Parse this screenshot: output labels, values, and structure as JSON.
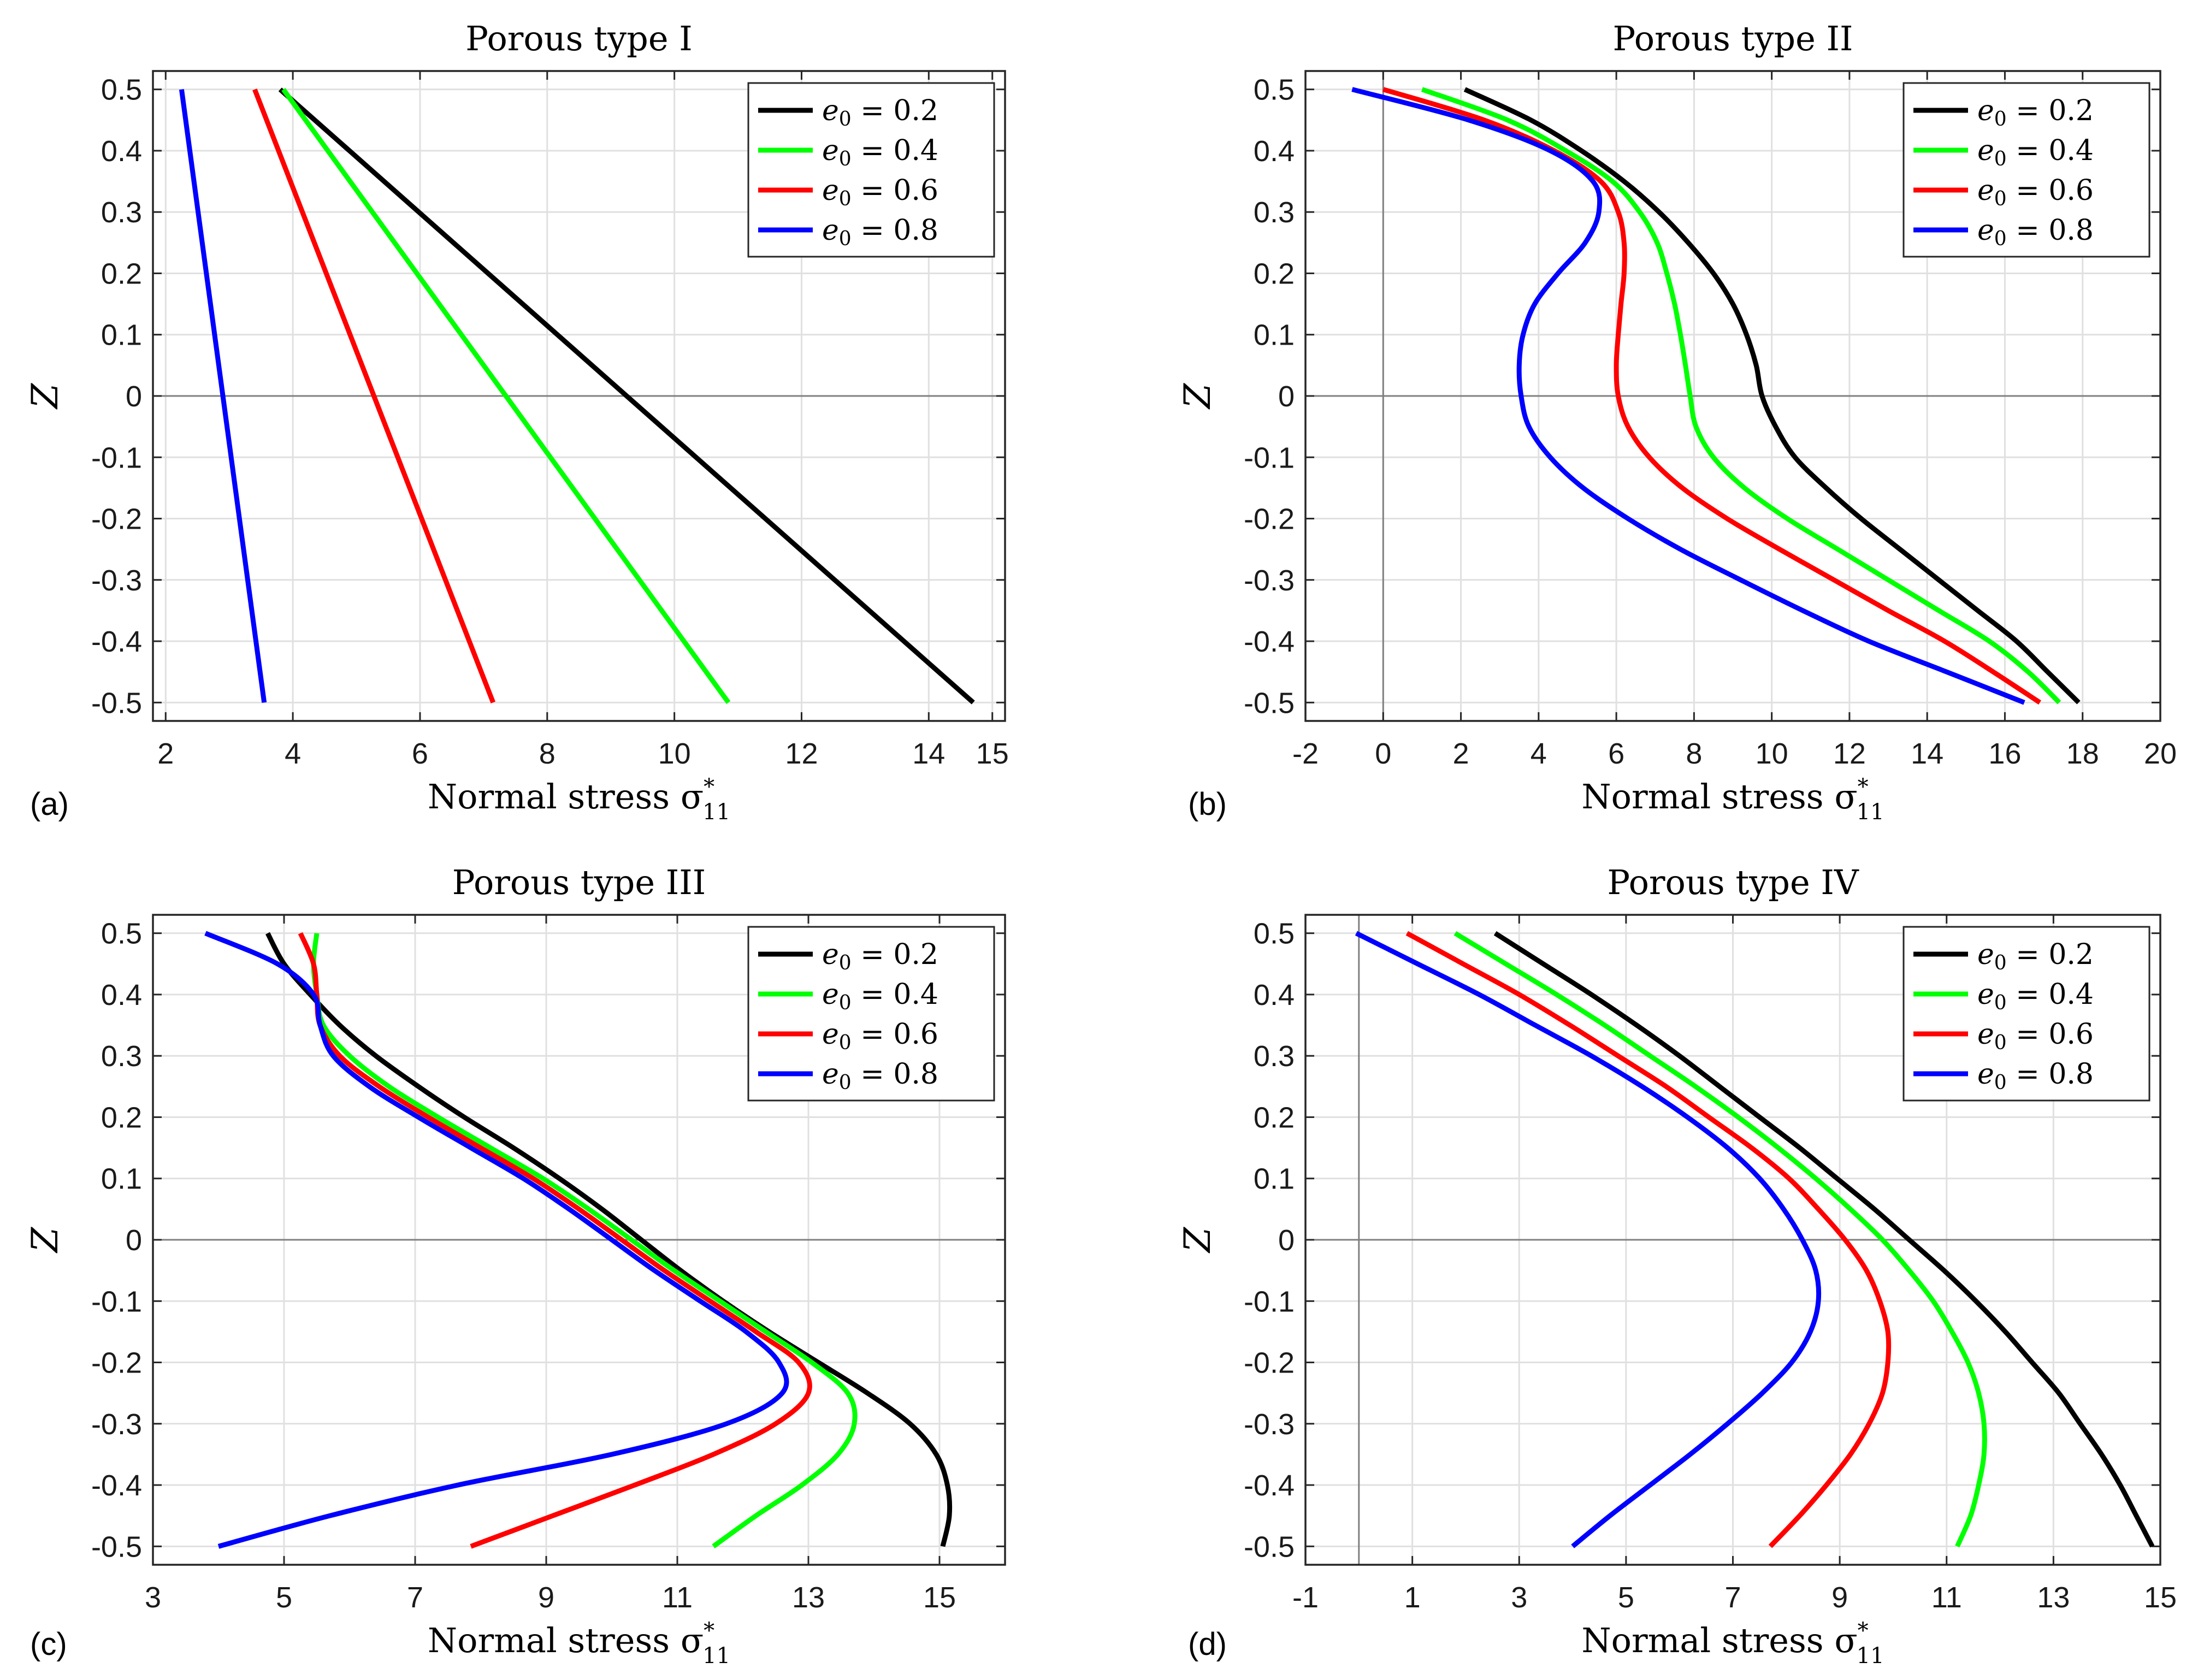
{
  "panel_labels": [
    "(a)",
    "(b)",
    "(c)",
    "(d)"
  ],
  "colors": {
    "e0_0.2": "#000000",
    "e0_0.4": "#00ff00",
    "e0_0.6": "#ff0000",
    "e0_0.8": "#0000ff"
  },
  "chart_data": [
    {
      "type": "line",
      "title": "Porous type I",
      "xlabel": "Normal stress σ",
      "xlabel_sub": "11",
      "xlabel_sup": "*",
      "ylabel": "Z",
      "xlim": [
        1.8,
        15.2
      ],
      "ylim": [
        -0.53,
        0.53
      ],
      "xticks": [
        2,
        4,
        6,
        8,
        10,
        12,
        14,
        15
      ],
      "yticks": [
        0.5,
        0.4,
        0.3,
        0.2,
        0.1,
        0,
        -0.1,
        -0.2,
        -0.3,
        -0.4,
        -0.5
      ],
      "grid": true,
      "legend_position": "top-right",
      "series": [
        {
          "name": "e0 = 0.2",
          "label_main": "e",
          "label_sub": "0",
          "label_rest": " = 0.2",
          "color": "#000000",
          "z": [
            0.5,
            -0.5
          ],
          "x": [
            3.8,
            14.7
          ]
        },
        {
          "name": "e0 = 0.4",
          "label_main": "e",
          "label_sub": "0",
          "label_rest": " = 0.4",
          "color": "#00ff00",
          "z": [
            0.5,
            -0.5
          ],
          "x": [
            3.85,
            10.85
          ]
        },
        {
          "name": "e0 = 0.6",
          "label_main": "e",
          "label_sub": "0",
          "label_rest": " = 0.6",
          "color": "#ff0000",
          "z": [
            0.5,
            -0.5
          ],
          "x": [
            3.4,
            7.15
          ]
        },
        {
          "name": "e0 = 0.8",
          "label_main": "e",
          "label_sub": "0",
          "label_rest": " = 0.8",
          "color": "#0000ff",
          "z": [
            0.5,
            -0.5
          ],
          "x": [
            2.25,
            3.55
          ]
        }
      ]
    },
    {
      "type": "line",
      "title": "Porous type II",
      "xlabel": "Normal stress σ",
      "xlabel_sub": "11",
      "xlabel_sup": "*",
      "ylabel": "Z",
      "xlim": [
        -2,
        20
      ],
      "ylim": [
        -0.53,
        0.53
      ],
      "xticks": [
        -2,
        0,
        2,
        4,
        6,
        8,
        10,
        12,
        14,
        16,
        18,
        20
      ],
      "yticks": [
        0.5,
        0.4,
        0.3,
        0.2,
        0.1,
        0,
        -0.1,
        -0.2,
        -0.3,
        -0.4,
        -0.5
      ],
      "grid": true,
      "legend_position": "top-right",
      "series": [
        {
          "name": "e0 = 0.2",
          "label_main": "e",
          "label_sub": "0",
          "label_rest": " = 0.2",
          "color": "#000000",
          "z": [
            0.5,
            0.45,
            0.4,
            0.35,
            0.3,
            0.25,
            0.2,
            0.15,
            0.1,
            0.05,
            0,
            -0.05,
            -0.1,
            -0.15,
            -0.2,
            -0.25,
            -0.3,
            -0.35,
            -0.4,
            -0.45,
            -0.5
          ],
          "x": [
            2.1,
            3.8,
            5.1,
            6.2,
            7.1,
            7.85,
            8.5,
            9.0,
            9.35,
            9.6,
            9.75,
            10.1,
            10.6,
            11.4,
            12.3,
            13.3,
            14.3,
            15.3,
            16.3,
            17.1,
            17.9
          ]
        },
        {
          "name": "e0 = 0.4",
          "label_main": "e",
          "label_sub": "0",
          "label_rest": " = 0.4",
          "color": "#00ff00",
          "z": [
            0.5,
            0.45,
            0.4,
            0.35,
            0.3,
            0.25,
            0.2,
            0.15,
            0.1,
            0.05,
            0,
            -0.05,
            -0.1,
            -0.15,
            -0.2,
            -0.25,
            -0.3,
            -0.35,
            -0.4,
            -0.45,
            -0.5
          ],
          "x": [
            1.0,
            3.2,
            4.7,
            5.9,
            6.6,
            7.05,
            7.3,
            7.5,
            7.65,
            7.78,
            7.9,
            8.05,
            8.5,
            9.3,
            10.4,
            11.7,
            13.0,
            14.3,
            15.6,
            16.6,
            17.4
          ]
        },
        {
          "name": "e0 = 0.6",
          "label_main": "e",
          "label_sub": "0",
          "label_rest": " = 0.6",
          "color": "#ff0000",
          "z": [
            0.5,
            0.45,
            0.4,
            0.35,
            0.3,
            0.25,
            0.2,
            0.15,
            0.1,
            0.05,
            0,
            -0.05,
            -0.1,
            -0.15,
            -0.2,
            -0.25,
            -0.3,
            -0.35,
            -0.4,
            -0.45,
            -0.5
          ],
          "x": [
            0.0,
            2.6,
            4.4,
            5.6,
            6.05,
            6.2,
            6.2,
            6.12,
            6.05,
            6.0,
            6.05,
            6.3,
            6.85,
            7.7,
            8.85,
            10.2,
            11.6,
            13.0,
            14.45,
            15.7,
            16.9
          ]
        },
        {
          "name": "e0 = 0.8",
          "label_main": "e",
          "label_sub": "0",
          "label_rest": " = 0.8",
          "color": "#0000ff",
          "z": [
            0.5,
            0.45,
            0.4,
            0.35,
            0.3,
            0.25,
            0.2,
            0.15,
            0.1,
            0.05,
            0,
            -0.05,
            -0.1,
            -0.15,
            -0.2,
            -0.25,
            -0.3,
            -0.35,
            -0.4,
            -0.45,
            -0.5
          ],
          "x": [
            -0.8,
            2.2,
            4.3,
            5.4,
            5.55,
            5.2,
            4.5,
            3.9,
            3.6,
            3.5,
            3.55,
            3.75,
            4.3,
            5.15,
            6.3,
            7.65,
            9.2,
            10.8,
            12.5,
            14.5,
            16.5
          ]
        }
      ]
    },
    {
      "type": "line",
      "title": "Porous type III",
      "xlabel": "Normal stress σ",
      "xlabel_sub": "11",
      "xlabel_sup": "*",
      "ylabel": "Z",
      "xlim": [
        3,
        16
      ],
      "ylim": [
        -0.53,
        0.53
      ],
      "xticks": [
        3,
        5,
        7,
        9,
        11,
        13,
        15
      ],
      "yticks": [
        0.5,
        0.4,
        0.3,
        0.2,
        0.1,
        0,
        -0.1,
        -0.2,
        -0.3,
        -0.4,
        -0.5
      ],
      "grid": true,
      "legend_position": "top-right",
      "series": [
        {
          "name": "e0 = 0.2",
          "label_main": "e",
          "label_sub": "0",
          "label_rest": " = 0.2",
          "color": "#000000",
          "z": [
            0.5,
            0.45,
            0.4,
            0.35,
            0.3,
            0.25,
            0.2,
            0.15,
            0.1,
            0.05,
            0,
            -0.05,
            -0.1,
            -0.15,
            -0.2,
            -0.25,
            -0.3,
            -0.35,
            -0.4,
            -0.45,
            -0.5
          ],
          "x": [
            4.75,
            5.0,
            5.4,
            5.85,
            6.4,
            7.05,
            7.75,
            8.5,
            9.2,
            9.85,
            10.45,
            11.05,
            11.7,
            12.4,
            13.15,
            13.9,
            14.55,
            14.95,
            15.12,
            15.15,
            15.05
          ]
        },
        {
          "name": "e0 = 0.4",
          "label_main": "e",
          "label_sub": "0",
          "label_rest": " = 0.4",
          "color": "#00ff00",
          "z": [
            0.5,
            0.45,
            0.4,
            0.35,
            0.3,
            0.25,
            0.2,
            0.15,
            0.1,
            0.05,
            0,
            -0.05,
            -0.1,
            -0.15,
            -0.2,
            -0.25,
            -0.3,
            -0.35,
            -0.4,
            -0.45,
            -0.5
          ],
          "x": [
            5.5,
            5.45,
            5.5,
            5.6,
            6.0,
            6.6,
            7.35,
            8.15,
            8.95,
            9.65,
            10.3,
            10.95,
            11.65,
            12.35,
            13.05,
            13.6,
            13.7,
            13.45,
            12.9,
            12.2,
            11.55
          ]
        },
        {
          "name": "e0 = 0.6",
          "label_main": "e",
          "label_sub": "0",
          "label_rest": " = 0.6",
          "color": "#ff0000",
          "z": [
            0.5,
            0.45,
            0.4,
            0.35,
            0.3,
            0.25,
            0.2,
            0.15,
            0.1,
            0.05,
            0,
            -0.05,
            -0.1,
            -0.15,
            -0.2,
            -0.25,
            -0.3,
            -0.35,
            -0.4,
            -0.45,
            -0.5
          ],
          "x": [
            5.25,
            5.45,
            5.5,
            5.55,
            5.85,
            6.45,
            7.2,
            8.0,
            8.8,
            9.5,
            10.15,
            10.8,
            11.5,
            12.2,
            12.85,
            13.0,
            12.5,
            11.55,
            10.35,
            9.1,
            7.85
          ]
        },
        {
          "name": "e0 = 0.8",
          "label_main": "e",
          "label_sub": "0",
          "label_rest": " = 0.8",
          "color": "#0000ff",
          "z": [
            0.5,
            0.45,
            0.4,
            0.35,
            0.3,
            0.25,
            0.2,
            0.15,
            0.1,
            0.05,
            0,
            -0.05,
            -0.1,
            -0.15,
            -0.2,
            -0.25,
            -0.3,
            -0.35,
            -0.4,
            -0.45,
            -0.5
          ],
          "x": [
            3.8,
            4.9,
            5.45,
            5.55,
            5.75,
            6.3,
            7.05,
            7.85,
            8.65,
            9.35,
            10.0,
            10.65,
            11.35,
            12.05,
            12.55,
            12.6,
            11.75,
            10.0,
            7.65,
            5.7,
            4.0
          ]
        }
      ]
    },
    {
      "type": "line",
      "title": "Porous type IV",
      "xlabel": "Normal stress σ",
      "xlabel_sub": "11",
      "xlabel_sup": "*",
      "ylabel": "Z",
      "xlim": [
        -1,
        15
      ],
      "ylim": [
        -0.53,
        0.53
      ],
      "xticks": [
        -1,
        1,
        3,
        5,
        7,
        9,
        11,
        13,
        15
      ],
      "yticks": [
        0.5,
        0.4,
        0.3,
        0.2,
        0.1,
        0,
        -0.1,
        -0.2,
        -0.3,
        -0.4,
        -0.5
      ],
      "grid": true,
      "legend_position": "top-right",
      "series": [
        {
          "name": "e0 = 0.2",
          "label_main": "e",
          "label_sub": "0",
          "label_rest": " = 0.2",
          "color": "#000000",
          "z": [
            0.5,
            0.45,
            0.4,
            0.35,
            0.3,
            0.25,
            0.2,
            0.15,
            0.1,
            0.05,
            0,
            -0.05,
            -0.1,
            -0.15,
            -0.2,
            -0.25,
            -0.3,
            -0.35,
            -0.4,
            -0.45,
            -0.5
          ],
          "x": [
            2.55,
            3.45,
            4.35,
            5.2,
            6.0,
            6.75,
            7.5,
            8.25,
            8.95,
            9.65,
            10.3,
            10.95,
            11.55,
            12.1,
            12.6,
            13.1,
            13.5,
            13.9,
            14.25,
            14.55,
            14.85
          ]
        },
        {
          "name": "e0 = 0.4",
          "label_main": "e",
          "label_sub": "0",
          "label_rest": " = 0.4",
          "color": "#00ff00",
          "z": [
            0.5,
            0.45,
            0.4,
            0.35,
            0.3,
            0.25,
            0.2,
            0.15,
            0.1,
            0.05,
            0,
            -0.05,
            -0.1,
            -0.15,
            -0.2,
            -0.25,
            -0.3,
            -0.35,
            -0.4,
            -0.45,
            -0.5
          ],
          "x": [
            1.8,
            2.75,
            3.7,
            4.6,
            5.45,
            6.3,
            7.1,
            7.85,
            8.55,
            9.2,
            9.8,
            10.3,
            10.75,
            11.1,
            11.4,
            11.6,
            11.7,
            11.7,
            11.6,
            11.45,
            11.2
          ]
        },
        {
          "name": "e0 = 0.6",
          "label_main": "e",
          "label_sub": "0",
          "label_rest": " = 0.6",
          "color": "#ff0000",
          "z": [
            0.5,
            0.45,
            0.4,
            0.35,
            0.3,
            0.25,
            0.2,
            0.15,
            0.1,
            0.05,
            0,
            -0.05,
            -0.1,
            -0.15,
            -0.2,
            -0.25,
            -0.3,
            -0.35,
            -0.4,
            -0.45,
            -0.5
          ],
          "x": [
            0.9,
            1.95,
            3.0,
            3.95,
            4.85,
            5.75,
            6.55,
            7.35,
            8.05,
            8.6,
            9.1,
            9.5,
            9.75,
            9.9,
            9.9,
            9.8,
            9.55,
            9.2,
            8.75,
            8.25,
            7.7
          ]
        },
        {
          "name": "e0 = 0.8",
          "label_main": "e",
          "label_sub": "0",
          "label_rest": " = 0.8",
          "color": "#0000ff",
          "z": [
            0.5,
            0.45,
            0.4,
            0.35,
            0.3,
            0.25,
            0.2,
            0.15,
            0.1,
            0.05,
            0,
            -0.05,
            -0.1,
            -0.15,
            -0.2,
            -0.25,
            -0.3,
            -0.35,
            -0.4,
            -0.45,
            -0.5
          ],
          "x": [
            -0.05,
            1.1,
            2.25,
            3.3,
            4.35,
            5.3,
            6.15,
            6.9,
            7.5,
            7.95,
            8.3,
            8.55,
            8.6,
            8.45,
            8.1,
            7.55,
            6.9,
            6.2,
            5.45,
            4.7,
            4.0
          ]
        }
      ]
    }
  ]
}
